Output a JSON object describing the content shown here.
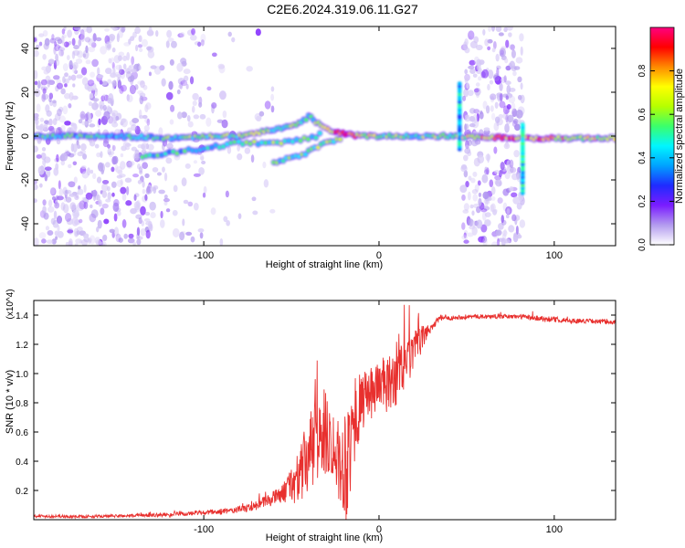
{
  "title": "C2E6.2024.319.06.11.G27",
  "colors": {
    "snr_line": "#e8302e",
    "spectrogram_background": "#ffffff",
    "colormap": [
      "#ffffff",
      "#b39bef",
      "#7a1cff",
      "#1f2bff",
      "#00a2ff",
      "#00f6ff",
      "#3bff6b",
      "#b6ff00",
      "#ffff00",
      "#ff8a00",
      "#ff0000",
      "#ff0080"
    ]
  },
  "chart_data": [
    {
      "type": "heatmap",
      "title": "C2E6.2024.319.06.11.G27",
      "xlabel": "Height of straight line (km)",
      "ylabel": "Frequency (Hz)",
      "xlim": [
        -197,
        135
      ],
      "ylim": [
        -50,
        50
      ],
      "x_ticks": [
        -100,
        0,
        100
      ],
      "x_tick_labels": [
        "-100",
        "0",
        "100"
      ],
      "y_ticks": [
        -40,
        -20,
        0,
        20,
        40
      ],
      "y_tick_labels": [
        "-40",
        "-20",
        "0",
        "20",
        "40"
      ],
      "colorbar": {
        "label": "Normalized spectral amplitude",
        "range": [
          0,
          1
        ],
        "ticks": [
          0,
          0.2,
          0.4,
          0.6,
          0.8
        ],
        "tick_labels": [
          "0.0",
          "0.2",
          "0.4",
          "0.6",
          "0.8"
        ]
      },
      "main_trace": [
        {
          "x": -197,
          "f": 0,
          "amp": 0.5
        },
        {
          "x": -150,
          "f": 0,
          "amp": 0.45
        },
        {
          "x": -120,
          "f": -1,
          "amp": 0.5
        },
        {
          "x": -100,
          "f": 0,
          "amp": 0.55
        },
        {
          "x": -80,
          "f": 0,
          "amp": 0.55
        },
        {
          "x": -60,
          "f": 3,
          "amp": 0.6
        },
        {
          "x": -45,
          "f": 6,
          "amp": 0.55
        },
        {
          "x": -40,
          "f": 9,
          "amp": 0.5
        },
        {
          "x": -30,
          "f": 3,
          "amp": 0.7
        },
        {
          "x": -20,
          "f": 1,
          "amp": 0.9
        },
        {
          "x": -10,
          "f": 0,
          "amp": 0.7
        },
        {
          "x": 0,
          "f": 0,
          "amp": 0.6
        },
        {
          "x": 20,
          "f": 0,
          "amp": 0.55
        },
        {
          "x": 42,
          "f": 0,
          "amp": 0.6
        },
        {
          "x": 85,
          "f": -1,
          "amp": 0.85
        },
        {
          "x": 110,
          "f": -1,
          "amp": 0.7
        },
        {
          "x": 135,
          "f": -1,
          "amp": 0.6
        }
      ],
      "secondary_trace": [
        {
          "x": -135,
          "f": -9,
          "amp": 0.5
        },
        {
          "x": -100,
          "f": -6,
          "amp": 0.45
        },
        {
          "x": -80,
          "f": -3,
          "amp": 0.5
        },
        {
          "x": -60,
          "f": -3,
          "amp": 0.55
        },
        {
          "x": -45,
          "f": -2,
          "amp": 0.5
        },
        {
          "x": -32,
          "f": 1,
          "amp": 0.5
        }
      ],
      "lower_branch": [
        {
          "x": -60,
          "f": -12,
          "amp": 0.5
        },
        {
          "x": -45,
          "f": -9,
          "amp": 0.55
        },
        {
          "x": -30,
          "f": -3,
          "amp": 0.6
        },
        {
          "x": -22,
          "f": -1,
          "amp": 0.6
        }
      ],
      "noise_bands": [
        {
          "x_from": -197,
          "x_to": -130,
          "density": 1.0
        },
        {
          "x_from": -130,
          "x_to": -100,
          "density": 0.35
        },
        {
          "x_from": -100,
          "x_to": -60,
          "density": 0.12
        },
        {
          "x_from": 48,
          "x_to": 82,
          "density": 1.0
        }
      ],
      "vertical_features": [
        {
          "x": 46,
          "f_from": -6,
          "f_to": 25,
          "amp": 0.4
        },
        {
          "x": 82,
          "f_from": -26,
          "f_to": 6,
          "amp": 0.45
        }
      ]
    },
    {
      "type": "line",
      "xlabel": "Height of straight line (km)",
      "ylabel": "SNR (10 * v/v)",
      "y_scale_label": "(x10^4)",
      "xlim": [
        -197,
        135
      ],
      "ylim": [
        0,
        1.5
      ],
      "x_ticks": [
        -100,
        0,
        100
      ],
      "x_tick_labels": [
        "-100",
        "0",
        "100"
      ],
      "y_ticks": [
        0.2,
        0.4,
        0.6,
        0.8,
        1.0,
        1.2,
        1.4
      ],
      "y_tick_labels": [
        "0.2",
        "0.4",
        "0.6",
        "0.8",
        "1.0",
        "1.2",
        "1.4"
      ],
      "series": [
        {
          "x": [
            -197,
            -170,
            -150,
            -130,
            -110,
            -95,
            -85,
            -75,
            -65,
            -55,
            -45,
            -40,
            -35,
            -30,
            -25,
            -22,
            -20,
            -18,
            -15,
            -12,
            -10,
            -5,
            0,
            5,
            10,
            15,
            20,
            25,
            30,
            35,
            40,
            50,
            60,
            70,
            80,
            90,
            100,
            110,
            120,
            135
          ],
          "y": [
            0.025,
            0.02,
            0.025,
            0.03,
            0.04,
            0.05,
            0.06,
            0.08,
            0.12,
            0.18,
            0.3,
            0.45,
            0.55,
            0.6,
            0.5,
            0.35,
            0.4,
            0.45,
            0.6,
            0.75,
            0.8,
            0.85,
            0.95,
            0.9,
            1.0,
            1.05,
            1.15,
            1.25,
            1.32,
            1.38,
            1.38,
            1.39,
            1.39,
            1.39,
            1.39,
            1.38,
            1.37,
            1.36,
            1.36,
            1.35
          ],
          "noise": [
            0.01,
            0.01,
            0.01,
            0.012,
            0.015,
            0.02,
            0.02,
            0.03,
            0.04,
            0.06,
            0.2,
            0.28,
            0.32,
            0.3,
            0.22,
            0.3,
            0.4,
            0.45,
            0.3,
            0.25,
            0.2,
            0.18,
            0.18,
            0.2,
            0.22,
            0.18,
            0.14,
            0.08,
            0.03,
            0.02,
            0.015,
            0.015,
            0.015,
            0.015,
            0.015,
            0.02,
            0.02,
            0.015,
            0.015,
            0.015
          ]
        }
      ]
    }
  ]
}
